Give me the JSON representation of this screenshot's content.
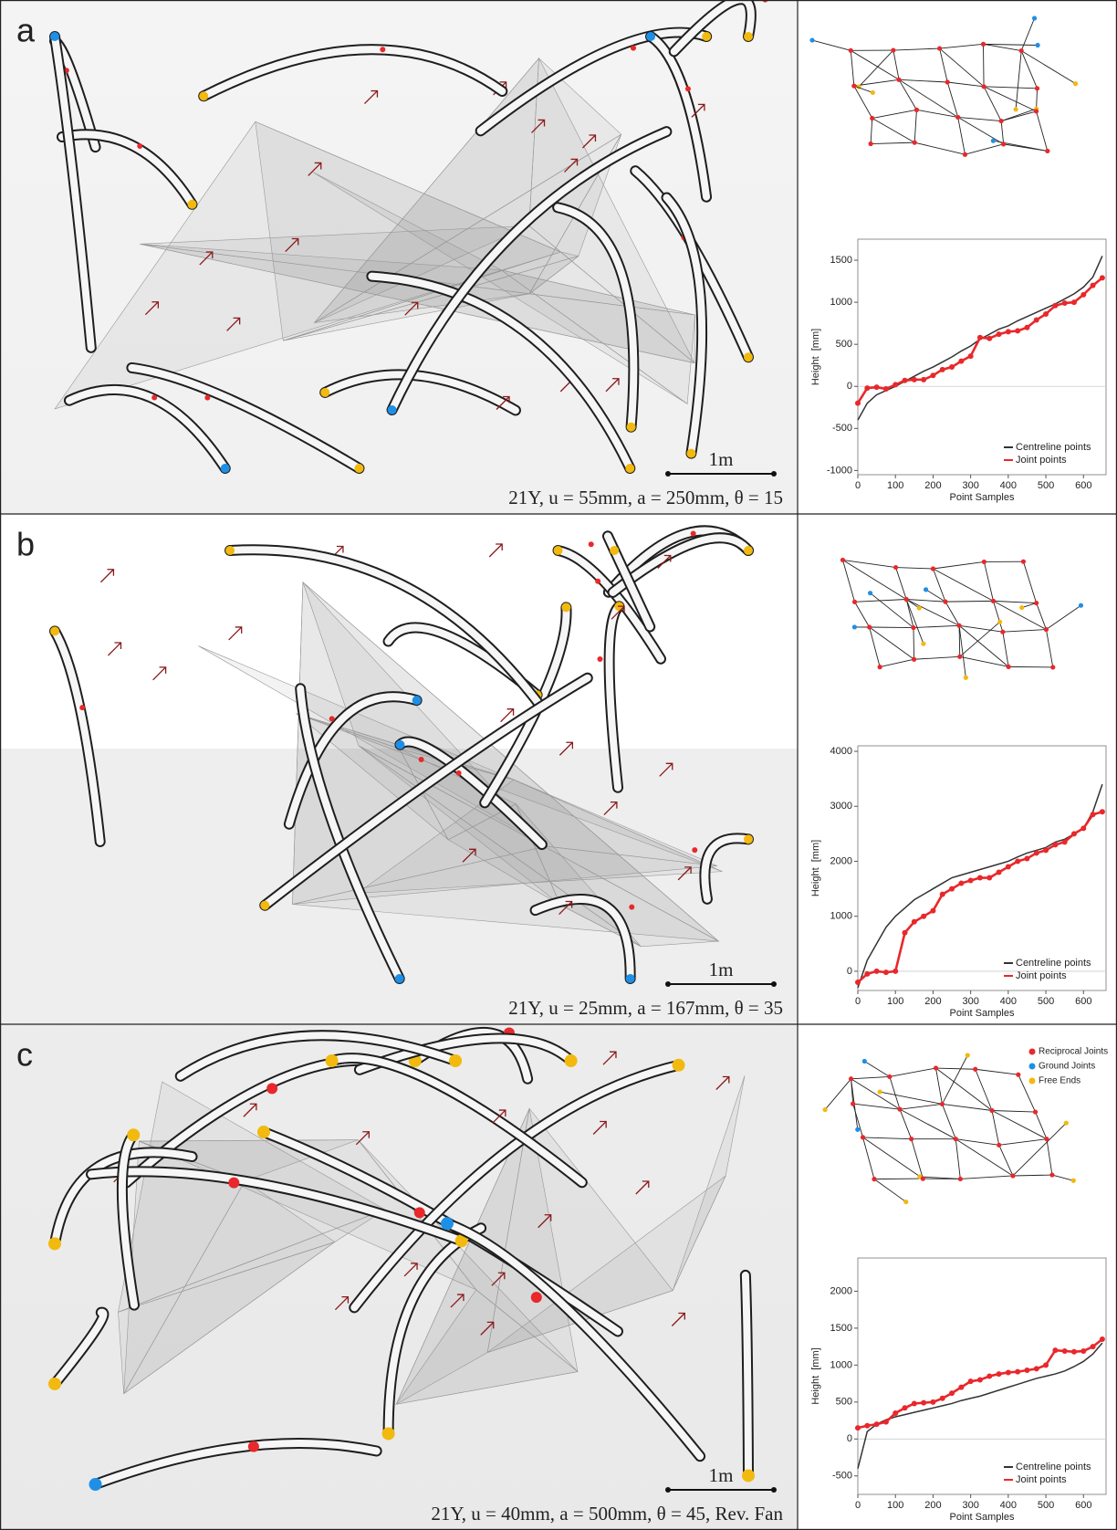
{
  "panels": [
    {
      "label": "a",
      "caption": "21Y, u = 55mm, a = 250mm, θ = 15",
      "scale_bar": "1m"
    },
    {
      "label": "b",
      "caption": "21Y, u = 25mm, a = 167mm, θ = 35",
      "scale_bar": "1m"
    },
    {
      "label": "c",
      "caption": "21Y, u = 40mm, a = 500mm, θ = 45, Rev. Fan",
      "scale_bar": "1m"
    }
  ],
  "legend": {
    "items": [
      {
        "label": "Reciprocal Joints",
        "color": "#e8282b"
      },
      {
        "label": "Ground Joints",
        "color": "#1e8fe6"
      },
      {
        "label": "Free Ends",
        "color": "#f2b90f"
      }
    ]
  },
  "chart_data": [
    {
      "type": "line",
      "x_label": "Point Samples",
      "y_label": "Height  [mm]",
      "legend": "lower right",
      "x": [
        0,
        25,
        50,
        75,
        100,
        125,
        150,
        175,
        200,
        225,
        250,
        275,
        300,
        325,
        350,
        375,
        400,
        425,
        450,
        475,
        500,
        525,
        550,
        575,
        600,
        625,
        650
      ],
      "xlim": [
        0,
        660
      ],
      "xticks": [
        0,
        100,
        200,
        300,
        400,
        500,
        600
      ],
      "ylim": [
        -1050,
        1750
      ],
      "yticks": [
        -1000,
        -500,
        0,
        500,
        1000,
        1500
      ],
      "series": [
        {
          "name": "Centreline points",
          "color": "#333333",
          "values": [
            -400,
            -200,
            -100,
            -50,
            0,
            60,
            120,
            180,
            230,
            290,
            350,
            420,
            480,
            560,
            620,
            680,
            720,
            780,
            830,
            880,
            930,
            980,
            1040,
            1100,
            1180,
            1300,
            1550
          ]
        },
        {
          "name": "Joint points",
          "color": "#e8282b",
          "values": [
            -200,
            -20,
            -10,
            -30,
            20,
            70,
            80,
            80,
            130,
            200,
            230,
            300,
            360,
            580,
            570,
            620,
            650,
            660,
            700,
            790,
            860,
            960,
            990,
            1000,
            1090,
            1200,
            1290
          ]
        }
      ]
    },
    {
      "type": "line",
      "x_label": "Point Samples",
      "y_label": "Height  [mm]",
      "legend": "lower right",
      "x": [
        0,
        25,
        50,
        75,
        100,
        125,
        150,
        175,
        200,
        225,
        250,
        275,
        300,
        325,
        350,
        375,
        400,
        425,
        450,
        475,
        500,
        525,
        550,
        575,
        600,
        625,
        650
      ],
      "xlim": [
        0,
        660
      ],
      "xticks": [
        0,
        100,
        200,
        300,
        400,
        500,
        600
      ],
      "ylim": [
        -350,
        4100
      ],
      "yticks": [
        0,
        1000,
        2000,
        3000,
        4000
      ],
      "series": [
        {
          "name": "Centreline points",
          "color": "#333333",
          "values": [
            -300,
            200,
            500,
            800,
            1000,
            1150,
            1300,
            1400,
            1500,
            1600,
            1700,
            1750,
            1800,
            1850,
            1900,
            1950,
            2000,
            2080,
            2150,
            2200,
            2250,
            2350,
            2400,
            2500,
            2600,
            2900,
            3400
          ]
        },
        {
          "name": "Joint points",
          "color": "#e8282b",
          "values": [
            -200,
            -50,
            0,
            -20,
            0,
            700,
            900,
            1000,
            1100,
            1400,
            1500,
            1600,
            1650,
            1700,
            1700,
            1800,
            1900,
            2000,
            2050,
            2150,
            2200,
            2300,
            2350,
            2500,
            2600,
            2850,
            2900
          ]
        }
      ]
    },
    {
      "type": "line",
      "x_label": "Point Samples",
      "y_label": "Height  [mm]",
      "legend": "lower right",
      "x": [
        0,
        25,
        50,
        75,
        100,
        125,
        150,
        175,
        200,
        225,
        250,
        275,
        300,
        325,
        350,
        375,
        400,
        425,
        450,
        475,
        500,
        525,
        550,
        575,
        600,
        625,
        650
      ],
      "xlim": [
        0,
        660
      ],
      "xticks": [
        0,
        100,
        200,
        300,
        400,
        500,
        600
      ],
      "ylim": [
        -750,
        2450
      ],
      "yticks": [
        -500,
        0,
        500,
        1000,
        1500,
        2000
      ],
      "series": [
        {
          "name": "Centreline points",
          "color": "#333333",
          "values": [
            -400,
            100,
            200,
            260,
            300,
            330,
            360,
            390,
            420,
            450,
            480,
            520,
            550,
            580,
            620,
            660,
            700,
            740,
            780,
            820,
            850,
            880,
            920,
            980,
            1050,
            1150,
            1300
          ]
        },
        {
          "name": "Joint points",
          "color": "#e8282b",
          "values": [
            150,
            180,
            200,
            230,
            350,
            420,
            480,
            490,
            500,
            550,
            620,
            700,
            780,
            800,
            850,
            880,
            900,
            910,
            930,
            950,
            1000,
            1200,
            1190,
            1180,
            1190,
            1250,
            1350
          ]
        }
      ]
    }
  ]
}
